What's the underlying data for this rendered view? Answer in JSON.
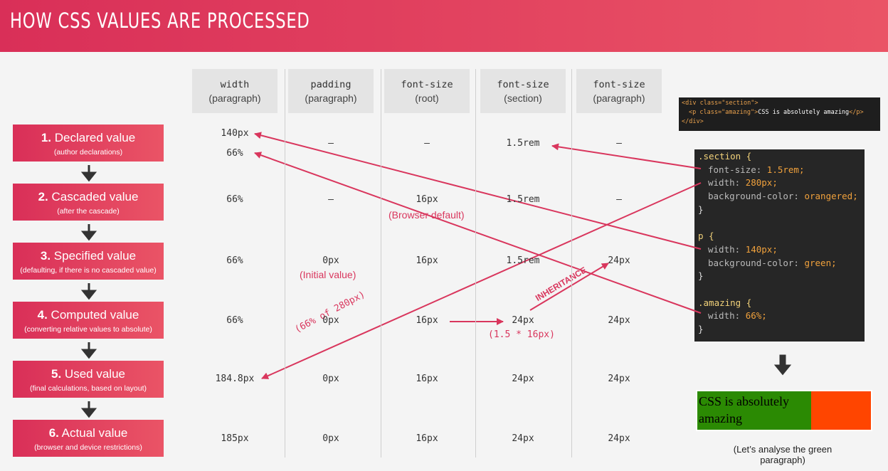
{
  "header": {
    "title": "HOW CSS VALUES ARE PROCESSED"
  },
  "columns": [
    {
      "property": "width",
      "element": "(paragraph)"
    },
    {
      "property": "padding",
      "element": "(paragraph)"
    },
    {
      "property": "font-size",
      "element": "(root)"
    },
    {
      "property": "font-size",
      "element": "(section)"
    },
    {
      "property": "font-size",
      "element": "(paragraph)"
    }
  ],
  "stages": [
    {
      "number": "1.",
      "name": "Declared value",
      "note": "(author declarations)"
    },
    {
      "number": "2.",
      "name": "Cascaded value",
      "note": "(after the cascade)"
    },
    {
      "number": "3.",
      "name": "Specified value",
      "note": "(defaulting, if there is no cascaded value)"
    },
    {
      "number": "4.",
      "name": "Computed value",
      "note": "(converting relative values to absolute)"
    },
    {
      "number": "5.",
      "name": "Used value",
      "note": "(final calculations, based on layout)"
    },
    {
      "number": "6.",
      "name": "Actual value",
      "note": "(browser and device restrictions)"
    }
  ],
  "table": {
    "rows": [
      [
        [
          "140px",
          "66%"
        ],
        "–",
        "–",
        "1.5rem",
        "–"
      ],
      [
        "66%",
        "–",
        "16px",
        "1.5rem",
        "–"
      ],
      [
        "66%",
        "0px",
        "16px",
        "1.5rem",
        "24px"
      ],
      [
        "66%",
        "0px",
        "16px",
        "24px",
        "24px"
      ],
      [
        "184.8px",
        "0px",
        "16px",
        "24px",
        "24px"
      ],
      [
        "185px",
        "0px",
        "16px",
        "24px",
        "24px"
      ]
    ]
  },
  "annotations": {
    "browser_default": "(Browser default)",
    "initial_value": "(Initial value)",
    "font_calc": "(1.5 * 16px)",
    "width_calc": "(66% of 280px)",
    "inheritance": "INHERITANCE"
  },
  "html_code": {
    "open": "<div class=\"section\">",
    "p_open": "<p class=\"amazing\">",
    "text": "CSS is absolutely amazing",
    "p_close": "</p>",
    "close": "</div>"
  },
  "css_code": [
    {
      "selector": ".section {",
      "declarations": [
        {
          "property": "font-size:",
          "value": "1.5rem;"
        },
        {
          "property": "width:",
          "value": "280px;"
        },
        {
          "property": "background-color:",
          "value": "orangered;"
        }
      ],
      "close": "}"
    },
    {
      "selector": "p {",
      "declarations": [
        {
          "property": "width:",
          "value": "140px;"
        },
        {
          "property": "background-color:",
          "value": "green;"
        }
      ],
      "close": "}"
    },
    {
      "selector": ".amazing {",
      "declarations": [
        {
          "property": "width:",
          "value": "66%;"
        }
      ],
      "close": "}"
    }
  ],
  "result": {
    "text": "CSS is absolutely amazing",
    "caption": "(Let’s analyse the green paragraph)"
  }
}
